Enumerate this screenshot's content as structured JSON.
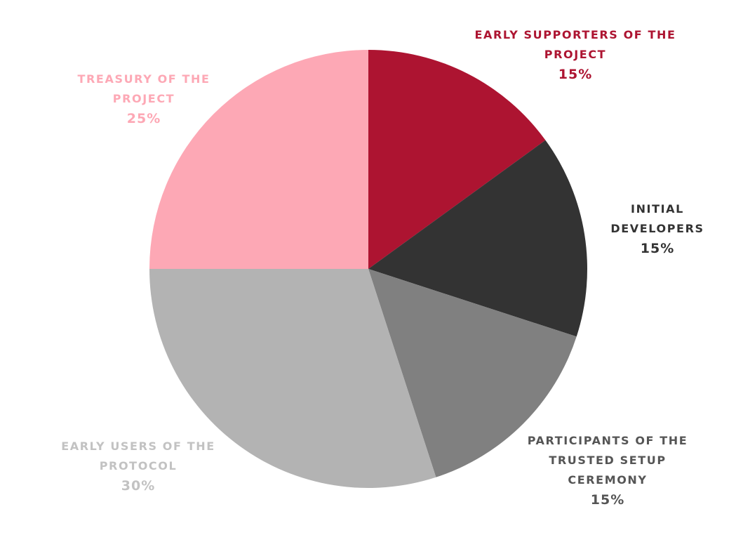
{
  "chart_data": {
    "type": "pie",
    "categories": [
      "EARLY SUPPORTERS OF THE PROJECT",
      "INITIAL DEVELOPERS",
      "PARTICIPANTS OF THE TRUSTED SETUP CEREMONY",
      "EARLY USERS OF THE PROTOCOL",
      "TREASURY OF THE PROJECT"
    ],
    "values": [
      15,
      15,
      15,
      30,
      25
    ],
    "value_labels": [
      "15%",
      "15%",
      "15%",
      "30%",
      "25%"
    ],
    "colors": [
      "#ad1431",
      "#333333",
      "#808080",
      "#b3b3b3",
      "#fda8b5"
    ],
    "label_colors": [
      "#ad1431",
      "#333333",
      "#555555",
      "#c2c2c2",
      "#fda8b5"
    ]
  }
}
